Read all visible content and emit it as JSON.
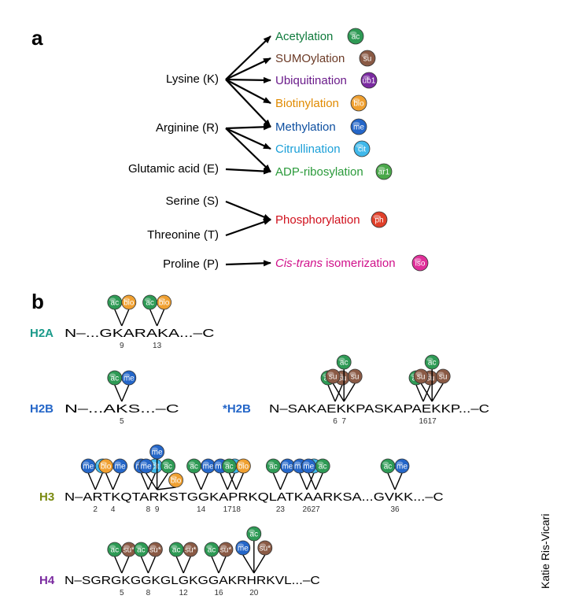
{
  "panel_a": {
    "label": "a",
    "residues": [
      {
        "id": "lys",
        "text": "Lysine (K)"
      },
      {
        "id": "arg",
        "text": "Arginine (R)"
      },
      {
        "id": "glu",
        "text": "Glutamic acid (E)"
      },
      {
        "id": "ser",
        "text": "Serine (S)"
      },
      {
        "id": "thr",
        "text": "Threonine (T)"
      },
      {
        "id": "pro",
        "text": "Proline (P)"
      }
    ],
    "modifications": [
      {
        "id": "acetylation",
        "text": "Acetylation",
        "badge": "ac",
        "color": "#0f7a3c",
        "badge_color": "#2e9a55"
      },
      {
        "id": "sumoylation",
        "text": "SUMOylation",
        "badge": "su",
        "color": "#6b3a26",
        "badge_color": "#8a5a45"
      },
      {
        "id": "ubiquitination",
        "text": "Ubiquitination",
        "badge": "ub1",
        "color": "#6a1b8a",
        "badge_color": "#7a2aa0"
      },
      {
        "id": "biotinylation",
        "text": "Biotinylation",
        "badge": "bio",
        "color": "#e08a00",
        "badge_color": "#f0a030"
      },
      {
        "id": "methylation",
        "text": "Methylation",
        "badge": "me",
        "color": "#0d4fa0",
        "badge_color": "#2466c8"
      },
      {
        "id": "citrullination",
        "text": "Citrullination",
        "badge": "cit",
        "color": "#1a9fd8",
        "badge_color": "#40b8ea"
      },
      {
        "id": "adp",
        "text": "ADP-ribosylation",
        "badge": "ar1",
        "color": "#2a9a3a",
        "badge_color": "#4aa84a"
      },
      {
        "id": "phospho",
        "text": "Phosphorylation",
        "badge": "ph",
        "color": "#d0101c",
        "badge_color": "#e0402a"
      },
      {
        "id": "isomer",
        "text_italic": "Cis-trans",
        "text": " isomerization",
        "badge": "iso",
        "color": "#d0108a",
        "badge_color": "#e0309a"
      }
    ],
    "links": [
      [
        "lys",
        "acetylation"
      ],
      [
        "lys",
        "sumoylation"
      ],
      [
        "lys",
        "ubiquitination"
      ],
      [
        "lys",
        "biotinylation"
      ],
      [
        "lys",
        "methylation"
      ],
      [
        "arg",
        "methylation"
      ],
      [
        "arg",
        "citrullination"
      ],
      [
        "arg",
        "adp"
      ],
      [
        "glu",
        "adp"
      ],
      [
        "ser",
        "phospho"
      ],
      [
        "thr",
        "phospho"
      ],
      [
        "pro",
        "isomer"
      ]
    ]
  },
  "panel_b": {
    "label": "b",
    "badge_colors": {
      "ac": "#2e9a55",
      "bio": "#f0a030",
      "me": "#2466c8",
      "cit": "#40b8ea",
      "su": "#8a5a45"
    },
    "badge_text": {
      "ac": "ac",
      "bio": "bio",
      "me": "me",
      "cit": "cit",
      "su": "su",
      "su*": "su*"
    },
    "histones": [
      {
        "id": "h2a",
        "name": "H2A",
        "name_color": "#1a9a8a",
        "sequence": "N–...GKARAKA...–C",
        "sites": [
          {
            "pos": "9",
            "mods": [
              "ac",
              "bio"
            ]
          },
          {
            "pos": "13",
            "mods": [
              "ac",
              "bio"
            ]
          }
        ]
      },
      {
        "id": "h2b",
        "name": "H2B",
        "name_color": "#2466c8",
        "sequence": "N–...AKS...–C",
        "sites": [
          {
            "pos": "5",
            "mods": [
              "ac",
              "me"
            ]
          }
        ]
      },
      {
        "id": "h2b_star",
        "name": "*H2B",
        "name_color": "#2466c8",
        "sequence": "N–SAKAEKKPASKAPAEKKP...–C",
        "sites": [
          {
            "pos": "6",
            "mods": [
              "ac",
              "su"
            ]
          },
          {
            "pos": "7",
            "mods": [
              "su",
              "ac",
              "su"
            ]
          },
          {
            "pos": "16",
            "mods": [
              "ac",
              "su"
            ]
          },
          {
            "pos": "17",
            "mods": [
              "su",
              "ac",
              "su"
            ]
          }
        ]
      },
      {
        "id": "h3",
        "name": "H3",
        "name_color": "#7a8a10",
        "sequence": "N–ARTKQTARKSTGGKAPRKQLATKAARKSA...GVKK...–C",
        "sites": [
          {
            "pos": "2",
            "mods": [
              "me",
              "cit"
            ]
          },
          {
            "pos": "4",
            "mods": [
              "bio",
              "me"
            ]
          },
          {
            "pos": "8",
            "mods": [
              "me",
              "cit"
            ]
          },
          {
            "pos": "9",
            "mods": [
              "me",
              "me",
              "ac",
              "bio"
            ]
          },
          {
            "pos": "14",
            "mods": [
              "ac",
              "me"
            ]
          },
          {
            "pos": "17",
            "mods": [
              "me",
              "cit"
            ]
          },
          {
            "pos": "18",
            "mods": [
              "ac",
              "bio"
            ]
          },
          {
            "pos": "23",
            "mods": [
              "ac",
              "me"
            ]
          },
          {
            "pos": "26",
            "mods": [
              "me",
              "cit"
            ]
          },
          {
            "pos": "27",
            "mods": [
              "me",
              "ac"
            ]
          },
          {
            "pos": "36",
            "mods": [
              "ac",
              "me"
            ]
          }
        ]
      },
      {
        "id": "h4",
        "name": "H4",
        "name_color": "#7a2aa0",
        "sequence": "N–SGRGKGGKGLGKGGAKRHRKVL...–C",
        "sites": [
          {
            "pos": "5",
            "mods": [
              "ac",
              "su*"
            ]
          },
          {
            "pos": "8",
            "mods": [
              "ac",
              "su*"
            ]
          },
          {
            "pos": "12",
            "mods": [
              "ac",
              "su*"
            ]
          },
          {
            "pos": "16",
            "mods": [
              "ac",
              "su*"
            ]
          },
          {
            "pos": "20",
            "mods": [
              "me",
              "ac",
              "su*"
            ]
          }
        ]
      }
    ]
  },
  "credit": "Katie Ris-Vicari"
}
